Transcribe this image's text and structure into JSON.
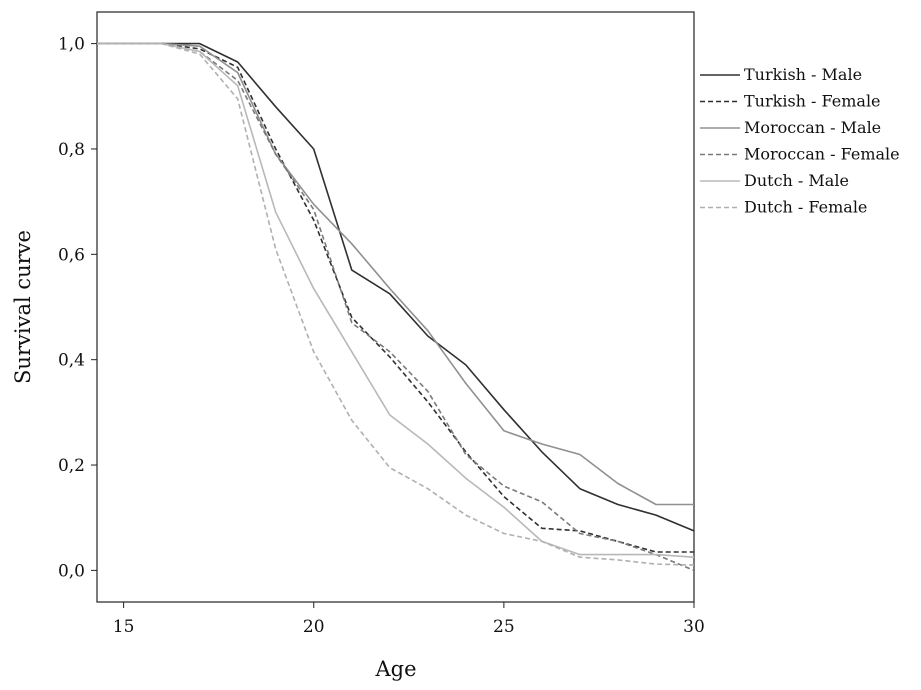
{
  "chart_data": {
    "type": "line",
    "xlabel": "Age",
    "ylabel": "Survival curve",
    "xlim": [
      14.3,
      30
    ],
    "ylim": [
      -0.06,
      1.06
    ],
    "x_ticks": [
      15,
      20,
      25,
      30
    ],
    "x_tick_labels": [
      "15",
      "20",
      "25",
      "30"
    ],
    "y_ticks": [
      0.0,
      0.2,
      0.4,
      0.6,
      0.8,
      1.0
    ],
    "y_tick_labels": [
      "0,0",
      "0,2",
      "0,4",
      "0,6",
      "0,8",
      "1,0"
    ],
    "grid": false,
    "legend_position": "right",
    "series": [
      {
        "name": "Turkish - Male",
        "color": "#303030",
        "dash": "solid",
        "x": [
          14.3,
          16,
          17,
          18,
          19,
          20,
          21,
          22,
          23,
          24,
          25,
          26,
          27,
          28,
          29,
          30
        ],
        "y": [
          1.0,
          1.0,
          1.0,
          0.965,
          0.88,
          0.8,
          0.57,
          0.525,
          0.445,
          0.39,
          0.305,
          0.225,
          0.155,
          0.125,
          0.105,
          0.075
        ]
      },
      {
        "name": "Turkish - Female",
        "color": "#303030",
        "dash": "dashed",
        "x": [
          14.3,
          16,
          17,
          18,
          19,
          20,
          21,
          22,
          23,
          24,
          25,
          26,
          27,
          28,
          29,
          30
        ],
        "y": [
          1.0,
          1.0,
          0.99,
          0.955,
          0.8,
          0.665,
          0.48,
          0.405,
          0.32,
          0.225,
          0.14,
          0.08,
          0.075,
          0.055,
          0.035,
          0.035
        ]
      },
      {
        "name": "Moroccan - Male",
        "color": "#909090",
        "dash": "solid",
        "x": [
          14.3,
          16,
          17,
          18,
          19,
          20,
          21,
          22,
          23,
          24,
          25,
          26,
          27,
          28,
          29,
          30
        ],
        "y": [
          1.0,
          1.0,
          0.995,
          0.945,
          0.79,
          0.695,
          0.62,
          0.535,
          0.455,
          0.355,
          0.265,
          0.24,
          0.22,
          0.165,
          0.125,
          0.125
        ]
      },
      {
        "name": "Moroccan - Female",
        "color": "#7a7a7a",
        "dash": "dashed",
        "x": [
          14.3,
          16,
          17,
          18,
          19,
          20,
          21,
          22,
          23,
          24,
          25,
          26,
          27,
          28,
          29,
          30
        ],
        "y": [
          1.0,
          1.0,
          0.985,
          0.93,
          0.79,
          0.685,
          0.47,
          0.415,
          0.34,
          0.22,
          0.16,
          0.13,
          0.07,
          0.055,
          0.03,
          0.0
        ]
      },
      {
        "name": "Dutch - Male",
        "color": "#b8b8b8",
        "dash": "solid",
        "x": [
          14.3,
          16,
          17,
          18,
          19,
          20,
          21,
          22,
          23,
          24,
          25,
          26,
          27,
          28,
          29,
          30
        ],
        "y": [
          1.0,
          1.0,
          0.985,
          0.92,
          0.68,
          0.535,
          0.415,
          0.295,
          0.24,
          0.175,
          0.12,
          0.055,
          0.03,
          0.03,
          0.03,
          0.025
        ]
      },
      {
        "name": "Dutch - Female",
        "color": "#b0b0b0",
        "dash": "dashed",
        "x": [
          14.3,
          16,
          17,
          18,
          19,
          20,
          21,
          22,
          23,
          24,
          25,
          26,
          27,
          28,
          29,
          30
        ],
        "y": [
          1.0,
          1.0,
          0.98,
          0.895,
          0.61,
          0.415,
          0.285,
          0.195,
          0.155,
          0.105,
          0.07,
          0.055,
          0.025,
          0.02,
          0.012,
          0.01
        ]
      }
    ]
  }
}
